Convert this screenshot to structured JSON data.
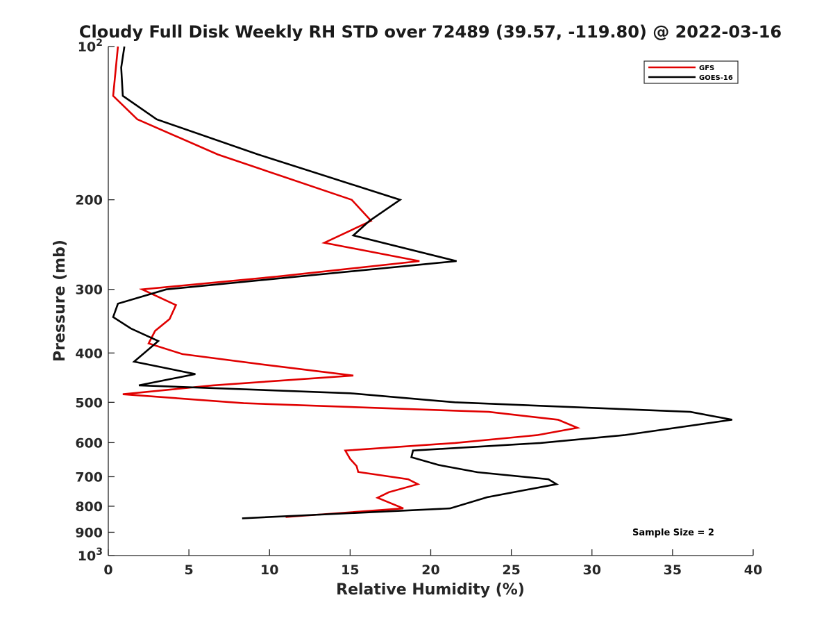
{
  "chart_data": {
    "type": "line",
    "title": "Cloudy Full Disk Weekly RH STD over 72489 (39.57, -119.80) @ 2022-03-16",
    "xlabel": "Relative Humidity (%)",
    "ylabel": "Pressure (mb)",
    "xlim": [
      0,
      40
    ],
    "ylim": [
      100,
      1000
    ],
    "yscale": "log",
    "y_reversed": true,
    "x_ticks": [
      0,
      5,
      10,
      15,
      20,
      25,
      30,
      35,
      40
    ],
    "y_ticks": [
      100,
      200,
      300,
      400,
      500,
      600,
      700,
      800,
      900,
      1000
    ],
    "y_tick_labels": [
      {
        "base": "10",
        "exp": "2"
      },
      {
        "base": "200",
        "exp": ""
      },
      {
        "base": "300",
        "exp": ""
      },
      {
        "base": "400",
        "exp": ""
      },
      {
        "base": "500",
        "exp": ""
      },
      {
        "base": "600",
        "exp": ""
      },
      {
        "base": "700",
        "exp": ""
      },
      {
        "base": "800",
        "exp": ""
      },
      {
        "base": "900",
        "exp": ""
      },
      {
        "base": "10",
        "exp": "3"
      }
    ],
    "grid": false,
    "legend_position": "top-right",
    "annotation": "Sample Size = 2",
    "series": [
      {
        "name": "GFS",
        "color": "#e00000",
        "points": [
          [
            0.6,
            100
          ],
          [
            0.3,
            125
          ],
          [
            1.8,
            139
          ],
          [
            6.8,
            163
          ],
          [
            15.1,
            200
          ],
          [
            16.3,
            220
          ],
          [
            13.4,
            243
          ],
          [
            19.3,
            264
          ],
          [
            10.5,
            283
          ],
          [
            2.1,
            300
          ],
          [
            4.2,
            322
          ],
          [
            3.8,
            343
          ],
          [
            2.9,
            362
          ],
          [
            2.5,
            383
          ],
          [
            4.6,
            402
          ],
          [
            10.0,
            423
          ],
          [
            15.2,
            443
          ],
          [
            6.5,
            463
          ],
          [
            0.9,
            482
          ],
          [
            8.4,
            502
          ],
          [
            23.6,
            522
          ],
          [
            27.9,
            541
          ],
          [
            29.1,
            561
          ],
          [
            26.6,
            580
          ],
          [
            21.5,
            601
          ],
          [
            14.7,
            622
          ],
          [
            15.0,
            646
          ],
          [
            15.4,
            667
          ],
          [
            15.5,
            685
          ],
          [
            18.6,
            708
          ],
          [
            19.2,
            724
          ],
          [
            17.4,
            751
          ],
          [
            16.7,
            770
          ],
          [
            18.3,
            808
          ],
          [
            11.0,
            840
          ]
        ]
      },
      {
        "name": "GOES-16",
        "color": "#000000",
        "points": [
          [
            1.0,
            100
          ],
          [
            0.8,
            110
          ],
          [
            0.9,
            125
          ],
          [
            3.0,
            139
          ],
          [
            9.3,
            163
          ],
          [
            18.1,
            200
          ],
          [
            16.2,
            220
          ],
          [
            15.2,
            235
          ],
          [
            21.6,
            264
          ],
          [
            3.6,
            300
          ],
          [
            0.6,
            320
          ],
          [
            0.3,
            340
          ],
          [
            1.4,
            358
          ],
          [
            3.1,
            379
          ],
          [
            1.6,
            416
          ],
          [
            5.4,
            440
          ],
          [
            1.9,
            463
          ],
          [
            15.0,
            480
          ],
          [
            21.5,
            500
          ],
          [
            36.1,
            522
          ],
          [
            38.7,
            541
          ],
          [
            32.0,
            580
          ],
          [
            26.8,
            601
          ],
          [
            18.9,
            622
          ],
          [
            18.8,
            641
          ],
          [
            20.5,
            664
          ],
          [
            22.9,
            686
          ],
          [
            27.3,
            708
          ],
          [
            27.8,
            724
          ],
          [
            23.5,
            768
          ],
          [
            21.2,
            808
          ],
          [
            8.3,
            845
          ]
        ]
      }
    ]
  }
}
